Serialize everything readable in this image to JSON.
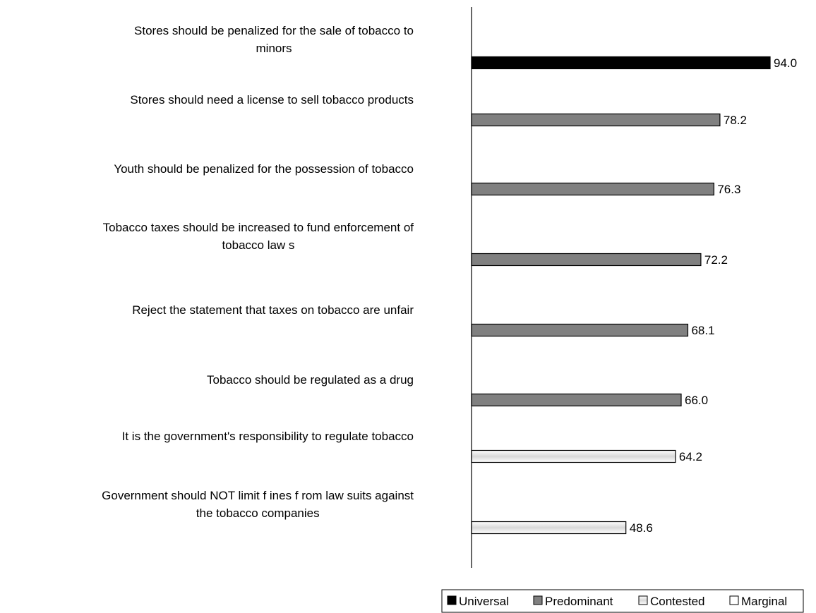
{
  "chart_data": {
    "type": "bar",
    "orientation": "horizontal",
    "categories": [
      [
        "Stores should be penalized for the sale of tobacco to",
        "minors"
      ],
      [
        "Stores should need a license to sell tobacco products"
      ],
      [
        "Youth should be penalized for the possession of tobacco"
      ],
      [
        "Tobacco taxes should be increased to fund enforcement of",
        "tobacco law s"
      ],
      [
        "Reject the statement that taxes on tobacco are unfair"
      ],
      [
        "Tobacco should be regulated as a drug"
      ],
      [
        "It is the government's responsibility to regulate tobacco"
      ],
      [
        "Government should NOT limit f ines f rom law suits against",
        "the tobacco companies"
      ]
    ],
    "values": [
      94.0,
      78.2,
      76.3,
      72.2,
      68.1,
      66.0,
      64.2,
      48.6
    ],
    "value_labels": [
      "94.0",
      "78.2",
      "76.3",
      "72.2",
      "68.1",
      "66.0",
      "64.2",
      "48.6"
    ],
    "groups": [
      "Universal",
      "Predominant",
      "Predominant",
      "Predominant",
      "Predominant",
      "Predominant",
      "Contested",
      "Contested"
    ],
    "xlim": [
      0,
      100
    ],
    "grid": false,
    "legend_position": "bottom-right",
    "legend": [
      {
        "name": "Universal",
        "color": "#000000"
      },
      {
        "name": "Predominant",
        "color": "#808080"
      },
      {
        "name": "Contested",
        "color": "#e6e6e6"
      },
      {
        "name": "Marginal",
        "color": "#ffffff"
      }
    ]
  }
}
